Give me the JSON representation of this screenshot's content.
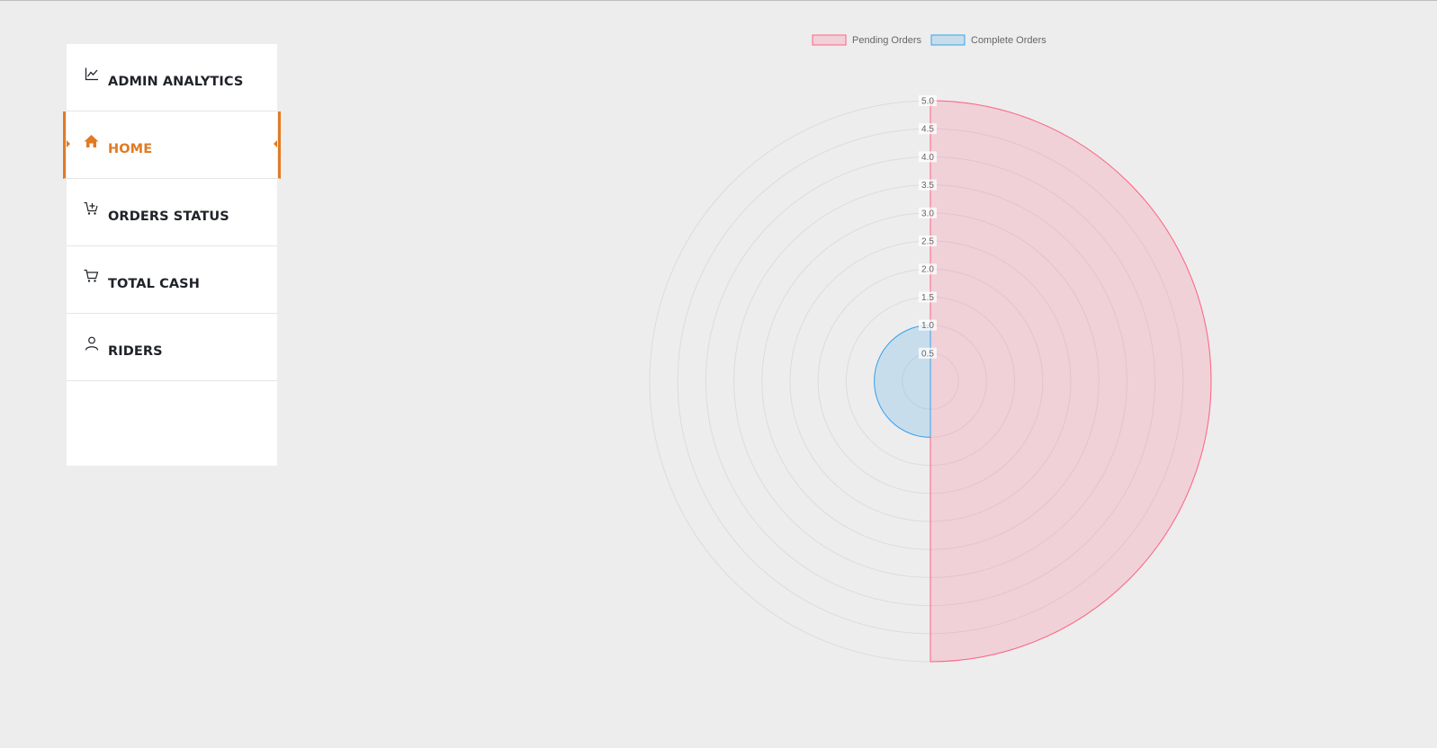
{
  "sidebar": {
    "items": [
      {
        "label": "ADMIN ANALYTICS",
        "icon": "chart-line-icon",
        "active": false
      },
      {
        "label": "HOME",
        "icon": "home-icon",
        "active": true
      },
      {
        "label": "ORDERS STATUS",
        "icon": "cart-plus-icon",
        "active": false
      },
      {
        "label": "TOTAL CASH",
        "icon": "cart-icon",
        "active": false
      },
      {
        "label": "RIDERS",
        "icon": "user-icon",
        "active": false
      }
    ]
  },
  "colors": {
    "accent": "#e07b24",
    "pending_fill": "rgba(255,99,132,0.2)",
    "pending_border": "#ff6384",
    "complete_fill": "rgba(54,162,235,0.2)",
    "complete_border": "#36a2eb"
  },
  "chart_data": {
    "type": "polarArea",
    "series": [
      {
        "name": "Pending Orders",
        "value": 5
      },
      {
        "name": "Complete Orders",
        "value": 1
      }
    ],
    "r_ticks": [
      "0.5",
      "1.0",
      "1.5",
      "2.0",
      "2.5",
      "3.0",
      "3.5",
      "4.0",
      "4.5",
      "5.0"
    ],
    "r_min": 0,
    "r_max": 5,
    "legend_position": "top",
    "grid": true
  }
}
